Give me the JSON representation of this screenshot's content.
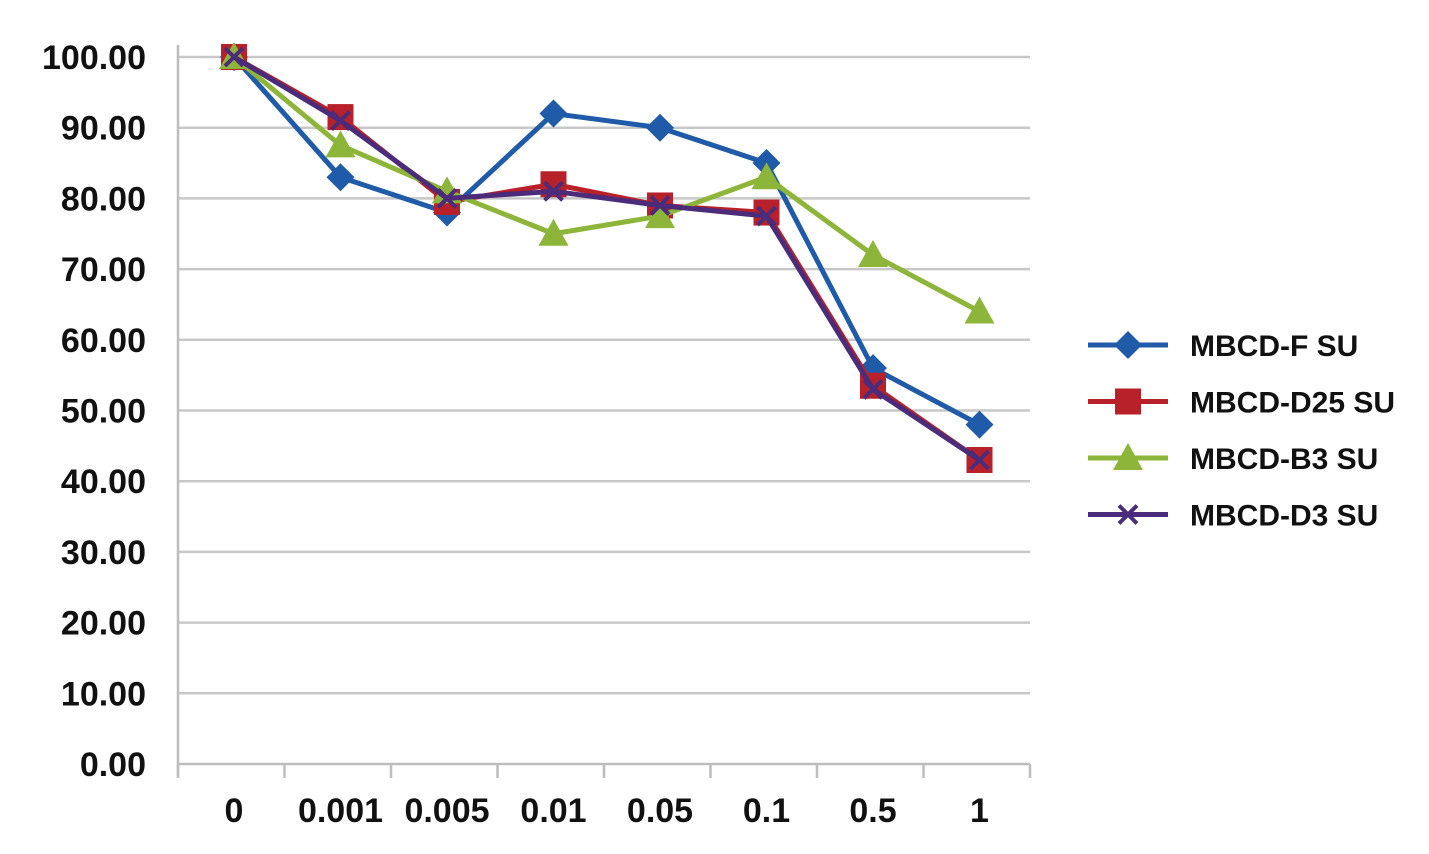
{
  "chart_data": {
    "type": "line",
    "categories": [
      "0",
      "0.001",
      "0.005",
      "0.01",
      "0.05",
      "0.1",
      "0.5",
      "1"
    ],
    "y_tick_labels": [
      "0.00",
      "10.00",
      "20.00",
      "30.00",
      "40.00",
      "50.00",
      "60.00",
      "70.00",
      "80.00",
      "90.00",
      "100.00"
    ],
    "ylim": [
      0,
      100
    ],
    "grid": true,
    "legend_position": "right",
    "title": "",
    "xlabel": "",
    "ylabel": "",
    "series": [
      {
        "name": "MBCD-F SU",
        "color": "#1f5ba8",
        "marker": "diamond",
        "values": [
          100,
          83,
          78,
          92,
          90,
          85,
          56,
          48
        ]
      },
      {
        "name": "MBCD-D25 SU",
        "color": "#b8202a",
        "marker": "square",
        "values": [
          100,
          91.5,
          79.5,
          82,
          79,
          78,
          53.5,
          43
        ]
      },
      {
        "name": "MBCD-B3 SU",
        "color": "#8db53a",
        "marker": "triangle",
        "values": [
          100,
          87.5,
          81,
          75,
          77.5,
          83,
          72,
          64
        ]
      },
      {
        "name": "MBCD-D3 SU",
        "color": "#4a2c7a",
        "marker": "cross",
        "values": [
          100,
          91,
          80,
          81,
          79,
          77.5,
          53,
          43
        ]
      }
    ]
  }
}
